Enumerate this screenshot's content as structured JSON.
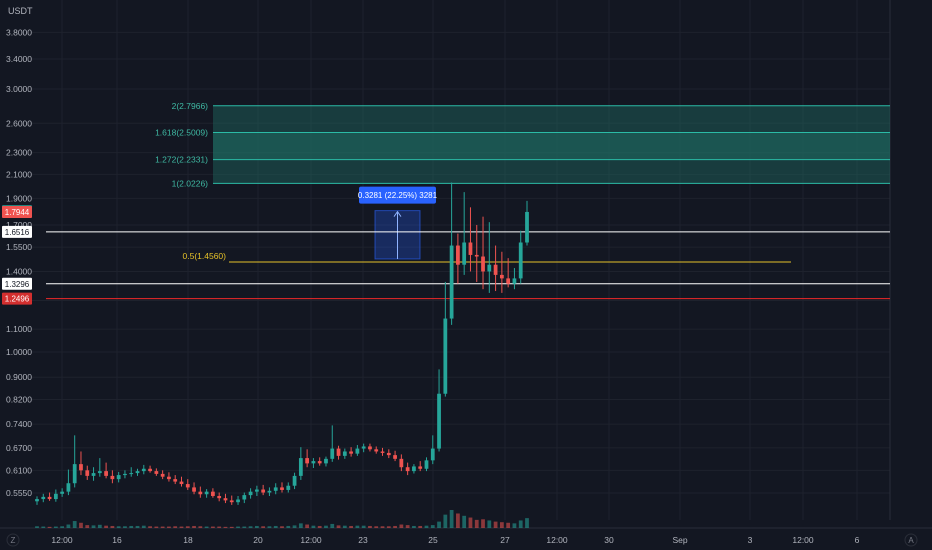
{
  "colors": {
    "background": "#131722",
    "grid": "#1e222d",
    "text": "#b2b5be",
    "up": "#26a69a",
    "down": "#ef5350",
    "fib_fill": "#1f6b62",
    "fib_line": "#2bbba6",
    "fib_label": "#3fb9a3",
    "midline": "#e6c229",
    "measure": "#2962ff",
    "white_line": "#ffffff",
    "red_line": "#ef2929"
  },
  "scale_currency": "USDT",
  "corner_left": "Z",
  "corner_right": "A",
  "chart_data": {
    "type": "candlestick",
    "quote": "USDT",
    "y_scale": "log",
    "ylim": [
      0.5,
      4.2
    ],
    "y_ticks": [
      "0.5550",
      "0.6100",
      "0.6700",
      "0.7400",
      "0.8200",
      "0.9000",
      "1.0000",
      "1.1000",
      "1.2400",
      "1.4000",
      "1.5500",
      "1.7000",
      "1.9000",
      "2.1000",
      "2.3000",
      "2.6000",
      "3.0000",
      "3.4000",
      "3.8000"
    ],
    "x_ticks": [
      "12:00",
      "16",
      "18",
      "20",
      "12:00",
      "23",
      "25",
      "27",
      "12:00",
      "30",
      "Sep",
      "3",
      "12:00",
      "6"
    ],
    "price_tags": [
      {
        "text": "1.8003",
        "kind": "current"
      },
      {
        "text": "1.7944",
        "kind": "down"
      },
      {
        "text": "1.6516",
        "kind": "white"
      },
      {
        "text": "1.3296",
        "kind": "white"
      },
      {
        "text": "1.2496",
        "kind": "red"
      }
    ],
    "horizontal_lines": [
      {
        "price": 1.6516,
        "kind": "white"
      },
      {
        "price": 1.3296,
        "kind": "white"
      },
      {
        "price": 1.2496,
        "kind": "red"
      }
    ],
    "fib_extension": {
      "levels": [
        {
          "label": "2(2.7966)",
          "price": 2.7966
        },
        {
          "label": "1.618(2.5009)",
          "price": 2.5009
        },
        {
          "label": "1.272(2.2331)",
          "price": 2.2331
        },
        {
          "label": "1(2.0226)",
          "price": 2.0226
        }
      ]
    },
    "mid_level": {
      "label": "0.5(1.4560)",
      "price": 1.456
    },
    "measure": {
      "label": "0.3281 (22.25%) 3281",
      "from": 1.475,
      "to": 1.805
    },
    "candles": [
      {
        "o": 0.536,
        "h": 0.547,
        "l": 0.528,
        "c": 0.541
      },
      {
        "o": 0.541,
        "h": 0.553,
        "l": 0.534,
        "c": 0.546
      },
      {
        "o": 0.546,
        "h": 0.556,
        "l": 0.537,
        "c": 0.541
      },
      {
        "o": 0.541,
        "h": 0.563,
        "l": 0.535,
        "c": 0.553
      },
      {
        "o": 0.553,
        "h": 0.566,
        "l": 0.546,
        "c": 0.558
      },
      {
        "o": 0.558,
        "h": 0.612,
        "l": 0.55,
        "c": 0.578
      },
      {
        "o": 0.578,
        "h": 0.706,
        "l": 0.568,
        "c": 0.626
      },
      {
        "o": 0.626,
        "h": 0.66,
        "l": 0.598,
        "c": 0.61
      },
      {
        "o": 0.61,
        "h": 0.622,
        "l": 0.586,
        "c": 0.596
      },
      {
        "o": 0.596,
        "h": 0.618,
        "l": 0.584,
        "c": 0.603
      },
      {
        "o": 0.603,
        "h": 0.642,
        "l": 0.594,
        "c": 0.608
      },
      {
        "o": 0.608,
        "h": 0.63,
        "l": 0.59,
        "c": 0.596
      },
      {
        "o": 0.596,
        "h": 0.61,
        "l": 0.578,
        "c": 0.588
      },
      {
        "o": 0.588,
        "h": 0.606,
        "l": 0.58,
        "c": 0.598
      },
      {
        "o": 0.598,
        "h": 0.61,
        "l": 0.59,
        "c": 0.601
      },
      {
        "o": 0.601,
        "h": 0.618,
        "l": 0.594,
        "c": 0.603
      },
      {
        "o": 0.603,
        "h": 0.614,
        "l": 0.596,
        "c": 0.608
      },
      {
        "o": 0.608,
        "h": 0.624,
        "l": 0.6,
        "c": 0.614
      },
      {
        "o": 0.614,
        "h": 0.622,
        "l": 0.604,
        "c": 0.608
      },
      {
        "o": 0.608,
        "h": 0.615,
        "l": 0.596,
        "c": 0.601
      },
      {
        "o": 0.601,
        "h": 0.61,
        "l": 0.588,
        "c": 0.594
      },
      {
        "o": 0.594,
        "h": 0.605,
        "l": 0.582,
        "c": 0.588
      },
      {
        "o": 0.588,
        "h": 0.598,
        "l": 0.576,
        "c": 0.582
      },
      {
        "o": 0.582,
        "h": 0.594,
        "l": 0.57,
        "c": 0.576
      },
      {
        "o": 0.576,
        "h": 0.588,
        "l": 0.562,
        "c": 0.568
      },
      {
        "o": 0.568,
        "h": 0.58,
        "l": 0.552,
        "c": 0.558
      },
      {
        "o": 0.558,
        "h": 0.57,
        "l": 0.544,
        "c": 0.552
      },
      {
        "o": 0.552,
        "h": 0.564,
        "l": 0.544,
        "c": 0.558
      },
      {
        "o": 0.558,
        "h": 0.566,
        "l": 0.544,
        "c": 0.548
      },
      {
        "o": 0.548,
        "h": 0.556,
        "l": 0.536,
        "c": 0.543
      },
      {
        "o": 0.543,
        "h": 0.553,
        "l": 0.532,
        "c": 0.538
      },
      {
        "o": 0.538,
        "h": 0.549,
        "l": 0.528,
        "c": 0.534
      },
      {
        "o": 0.534,
        "h": 0.548,
        "l": 0.528,
        "c": 0.54
      },
      {
        "o": 0.54,
        "h": 0.556,
        "l": 0.532,
        "c": 0.55
      },
      {
        "o": 0.55,
        "h": 0.566,
        "l": 0.542,
        "c": 0.558
      },
      {
        "o": 0.558,
        "h": 0.572,
        "l": 0.548,
        "c": 0.563
      },
      {
        "o": 0.563,
        "h": 0.574,
        "l": 0.55,
        "c": 0.556
      },
      {
        "o": 0.556,
        "h": 0.568,
        "l": 0.548,
        "c": 0.56
      },
      {
        "o": 0.56,
        "h": 0.578,
        "l": 0.552,
        "c": 0.568
      },
      {
        "o": 0.568,
        "h": 0.58,
        "l": 0.556,
        "c": 0.562
      },
      {
        "o": 0.562,
        "h": 0.58,
        "l": 0.556,
        "c": 0.572
      },
      {
        "o": 0.572,
        "h": 0.604,
        "l": 0.564,
        "c": 0.596
      },
      {
        "o": 0.596,
        "h": 0.672,
        "l": 0.586,
        "c": 0.642
      },
      {
        "o": 0.642,
        "h": 0.666,
        "l": 0.618,
        "c": 0.628
      },
      {
        "o": 0.628,
        "h": 0.642,
        "l": 0.616,
        "c": 0.634
      },
      {
        "o": 0.634,
        "h": 0.644,
        "l": 0.622,
        "c": 0.628
      },
      {
        "o": 0.628,
        "h": 0.646,
        "l": 0.62,
        "c": 0.64
      },
      {
        "o": 0.64,
        "h": 0.736,
        "l": 0.632,
        "c": 0.668
      },
      {
        "o": 0.668,
        "h": 0.676,
        "l": 0.638,
        "c": 0.648
      },
      {
        "o": 0.648,
        "h": 0.668,
        "l": 0.64,
        "c": 0.66
      },
      {
        "o": 0.66,
        "h": 0.672,
        "l": 0.646,
        "c": 0.654
      },
      {
        "o": 0.654,
        "h": 0.678,
        "l": 0.648,
        "c": 0.668
      },
      {
        "o": 0.668,
        "h": 0.682,
        "l": 0.658,
        "c": 0.674
      },
      {
        "o": 0.674,
        "h": 0.682,
        "l": 0.66,
        "c": 0.666
      },
      {
        "o": 0.666,
        "h": 0.674,
        "l": 0.654,
        "c": 0.66
      },
      {
        "o": 0.66,
        "h": 0.67,
        "l": 0.648,
        "c": 0.656
      },
      {
        "o": 0.656,
        "h": 0.666,
        "l": 0.642,
        "c": 0.65
      },
      {
        "o": 0.65,
        "h": 0.662,
        "l": 0.634,
        "c": 0.64
      },
      {
        "o": 0.64,
        "h": 0.652,
        "l": 0.608,
        "c": 0.618
      },
      {
        "o": 0.618,
        "h": 0.63,
        "l": 0.598,
        "c": 0.608
      },
      {
        "o": 0.608,
        "h": 0.626,
        "l": 0.602,
        "c": 0.62
      },
      {
        "o": 0.62,
        "h": 0.634,
        "l": 0.608,
        "c": 0.614
      },
      {
        "o": 0.614,
        "h": 0.644,
        "l": 0.608,
        "c": 0.636
      },
      {
        "o": 0.636,
        "h": 0.706,
        "l": 0.626,
        "c": 0.668
      },
      {
        "o": 0.668,
        "h": 0.93,
        "l": 0.66,
        "c": 0.84
      },
      {
        "o": 0.84,
        "h": 1.34,
        "l": 0.83,
        "c": 1.15
      },
      {
        "o": 1.15,
        "h": 2.03,
        "l": 1.12,
        "c": 1.56
      },
      {
        "o": 1.56,
        "h": 1.64,
        "l": 1.33,
        "c": 1.44
      },
      {
        "o": 1.44,
        "h": 1.95,
        "l": 1.38,
        "c": 1.58
      },
      {
        "o": 1.58,
        "h": 1.83,
        "l": 1.4,
        "c": 1.5
      },
      {
        "o": 1.5,
        "h": 1.7,
        "l": 1.34,
        "c": 1.49
      },
      {
        "o": 1.49,
        "h": 1.76,
        "l": 1.3,
        "c": 1.4
      },
      {
        "o": 1.4,
        "h": 1.72,
        "l": 1.28,
        "c": 1.44
      },
      {
        "o": 1.44,
        "h": 1.56,
        "l": 1.29,
        "c": 1.38
      },
      {
        "o": 1.38,
        "h": 1.52,
        "l": 1.28,
        "c": 1.36
      },
      {
        "o": 1.36,
        "h": 1.48,
        "l": 1.31,
        "c": 1.33
      },
      {
        "o": 1.33,
        "h": 1.42,
        "l": 1.3,
        "c": 1.36
      },
      {
        "o": 1.36,
        "h": 1.66,
        "l": 1.33,
        "c": 1.58
      },
      {
        "o": 1.58,
        "h": 1.88,
        "l": 1.56,
        "c": 1.795
      }
    ],
    "volume": [
      0.6,
      0.5,
      0.4,
      0.5,
      0.6,
      1.2,
      2.4,
      1.8,
      1.0,
      0.9,
      1.1,
      0.8,
      0.7,
      0.6,
      0.6,
      0.7,
      0.7,
      0.8,
      0.6,
      0.5,
      0.5,
      0.5,
      0.6,
      0.5,
      0.6,
      0.7,
      0.6,
      0.5,
      0.5,
      0.5,
      0.4,
      0.4,
      0.5,
      0.5,
      0.6,
      0.7,
      0.6,
      0.6,
      0.7,
      0.6,
      0.7,
      0.9,
      1.6,
      1.2,
      0.8,
      0.7,
      0.8,
      1.4,
      0.9,
      0.8,
      0.7,
      0.8,
      0.8,
      0.7,
      0.6,
      0.6,
      0.6,
      0.7,
      1.2,
      1.0,
      0.7,
      0.7,
      0.8,
      1.0,
      2.2,
      4.6,
      6.2,
      5.0,
      4.2,
      3.6,
      2.8,
      3.0,
      2.6,
      2.2,
      2.0,
      1.8,
      1.6,
      2.6,
      3.4
    ]
  }
}
